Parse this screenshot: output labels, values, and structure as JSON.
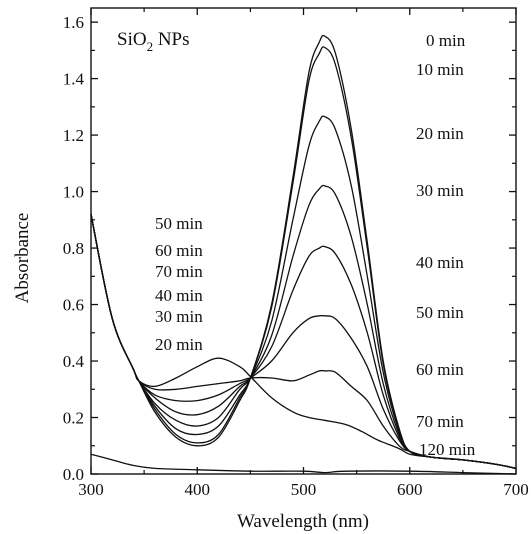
{
  "chart_data": {
    "type": "line",
    "title_main": "SiO",
    "title_sub": "2",
    "title_rest": " NPs",
    "xlabel": "Wavelength (nm)",
    "ylabel": "Absorbance",
    "xlim": [
      300,
      700
    ],
    "ylim": [
      0.0,
      1.65
    ],
    "xticks": [
      300,
      400,
      500,
      600,
      700
    ],
    "yticks": [
      0.0,
      0.2,
      0.4,
      0.6,
      0.8,
      1.0,
      1.2,
      1.4,
      1.6
    ],
    "xtick_labels": [
      "300",
      "400",
      "500",
      "600",
      "700"
    ],
    "ytick_labels": [
      "0.0",
      "0.2",
      "0.4",
      "0.6",
      "0.8",
      "1.0",
      "1.2",
      "1.4",
      "1.6"
    ],
    "grid": false,
    "right_labels": [
      "0 min",
      "10 min",
      "20 min",
      "30 min",
      "40 min",
      "50 min",
      "60 min",
      "70 min",
      "120 min"
    ],
    "left_labels": [
      "50 min",
      "60 min",
      "70 min",
      "40 min",
      "30 min",
      "20 min"
    ],
    "series": [
      {
        "values": [
          [
            300,
            0.92
          ],
          [
            320,
            0.55
          ],
          [
            340,
            0.37
          ],
          [
            345,
            0.33
          ],
          [
            360,
            0.22
          ],
          [
            380,
            0.13
          ],
          [
            400,
            0.1
          ],
          [
            420,
            0.13
          ],
          [
            440,
            0.26
          ],
          [
            450,
            0.34
          ],
          [
            470,
            0.6
          ],
          [
            490,
            1.05
          ],
          [
            505,
            1.42
          ],
          [
            515,
            1.53
          ],
          [
            520,
            1.55
          ],
          [
            530,
            1.49
          ],
          [
            545,
            1.22
          ],
          [
            560,
            0.82
          ],
          [
            575,
            0.4
          ],
          [
            590,
            0.16
          ],
          [
            600,
            0.08
          ],
          [
            620,
            0.06
          ],
          [
            650,
            0.05
          ],
          [
            680,
            0.035
          ],
          [
            700,
            0.02
          ]
        ]
      },
      {
        "values": [
          [
            300,
            0.92
          ],
          [
            320,
            0.55
          ],
          [
            340,
            0.37
          ],
          [
            345,
            0.33
          ],
          [
            360,
            0.23
          ],
          [
            380,
            0.14
          ],
          [
            400,
            0.11
          ],
          [
            420,
            0.14
          ],
          [
            440,
            0.27
          ],
          [
            450,
            0.34
          ],
          [
            470,
            0.59
          ],
          [
            490,
            1.03
          ],
          [
            505,
            1.39
          ],
          [
            515,
            1.49
          ],
          [
            520,
            1.51
          ],
          [
            530,
            1.45
          ],
          [
            545,
            1.19
          ],
          [
            560,
            0.8
          ],
          [
            575,
            0.39
          ],
          [
            590,
            0.16
          ],
          [
            600,
            0.08
          ],
          [
            620,
            0.06
          ],
          [
            650,
            0.05
          ],
          [
            680,
            0.035
          ],
          [
            700,
            0.02
          ]
        ]
      },
      {
        "values": [
          [
            300,
            0.92
          ],
          [
            320,
            0.55
          ],
          [
            340,
            0.37
          ],
          [
            345,
            0.33
          ],
          [
            360,
            0.24
          ],
          [
            380,
            0.16
          ],
          [
            400,
            0.14
          ],
          [
            420,
            0.17
          ],
          [
            440,
            0.28
          ],
          [
            450,
            0.34
          ],
          [
            470,
            0.54
          ],
          [
            490,
            0.9
          ],
          [
            505,
            1.16
          ],
          [
            515,
            1.25
          ],
          [
            520,
            1.265
          ],
          [
            530,
            1.22
          ],
          [
            545,
            1.02
          ],
          [
            560,
            0.7
          ],
          [
            575,
            0.36
          ],
          [
            590,
            0.15
          ],
          [
            600,
            0.08
          ],
          [
            620,
            0.06
          ],
          [
            650,
            0.05
          ],
          [
            680,
            0.035
          ],
          [
            700,
            0.02
          ]
        ]
      },
      {
        "values": [
          [
            300,
            0.92
          ],
          [
            320,
            0.55
          ],
          [
            340,
            0.37
          ],
          [
            345,
            0.33
          ],
          [
            360,
            0.25
          ],
          [
            380,
            0.19
          ],
          [
            400,
            0.17
          ],
          [
            420,
            0.2
          ],
          [
            440,
            0.3
          ],
          [
            450,
            0.34
          ],
          [
            470,
            0.49
          ],
          [
            490,
            0.77
          ],
          [
            505,
            0.95
          ],
          [
            515,
            1.01
          ],
          [
            520,
            1.02
          ],
          [
            530,
            0.99
          ],
          [
            545,
            0.84
          ],
          [
            560,
            0.6
          ],
          [
            575,
            0.32
          ],
          [
            590,
            0.14
          ],
          [
            600,
            0.08
          ],
          [
            620,
            0.06
          ],
          [
            650,
            0.05
          ],
          [
            680,
            0.035
          ],
          [
            700,
            0.02
          ]
        ]
      },
      {
        "values": [
          [
            300,
            0.92
          ],
          [
            320,
            0.55
          ],
          [
            340,
            0.37
          ],
          [
            345,
            0.33
          ],
          [
            360,
            0.27
          ],
          [
            380,
            0.22
          ],
          [
            400,
            0.21
          ],
          [
            420,
            0.24
          ],
          [
            440,
            0.31
          ],
          [
            450,
            0.34
          ],
          [
            470,
            0.45
          ],
          [
            490,
            0.65
          ],
          [
            505,
            0.77
          ],
          [
            515,
            0.8
          ],
          [
            520,
            0.805
          ],
          [
            530,
            0.78
          ],
          [
            545,
            0.67
          ],
          [
            560,
            0.5
          ],
          [
            575,
            0.28
          ],
          [
            590,
            0.13
          ],
          [
            600,
            0.08
          ],
          [
            620,
            0.06
          ],
          [
            650,
            0.05
          ],
          [
            680,
            0.035
          ],
          [
            700,
            0.02
          ]
        ]
      },
      {
        "values": [
          [
            300,
            0.92
          ],
          [
            320,
            0.55
          ],
          [
            340,
            0.37
          ],
          [
            345,
            0.33
          ],
          [
            360,
            0.28
          ],
          [
            380,
            0.26
          ],
          [
            400,
            0.26
          ],
          [
            420,
            0.28
          ],
          [
            440,
            0.32
          ],
          [
            450,
            0.34
          ],
          [
            470,
            0.4
          ],
          [
            490,
            0.5
          ],
          [
            505,
            0.55
          ],
          [
            515,
            0.56
          ],
          [
            520,
            0.56
          ],
          [
            530,
            0.55
          ],
          [
            545,
            0.48
          ],
          [
            560,
            0.38
          ],
          [
            575,
            0.23
          ],
          [
            590,
            0.12
          ],
          [
            600,
            0.08
          ],
          [
            620,
            0.06
          ],
          [
            650,
            0.05
          ],
          [
            680,
            0.035
          ],
          [
            700,
            0.02
          ]
        ]
      },
      {
        "values": [
          [
            300,
            0.92
          ],
          [
            320,
            0.55
          ],
          [
            340,
            0.37
          ],
          [
            345,
            0.33
          ],
          [
            360,
            0.3
          ],
          [
            380,
            0.3
          ],
          [
            400,
            0.31
          ],
          [
            420,
            0.32
          ],
          [
            440,
            0.33
          ],
          [
            450,
            0.34
          ],
          [
            470,
            0.34
          ],
          [
            490,
            0.33
          ],
          [
            505,
            0.35
          ],
          [
            515,
            0.365
          ],
          [
            520,
            0.365
          ],
          [
            530,
            0.36
          ],
          [
            545,
            0.31
          ],
          [
            560,
            0.26
          ],
          [
            575,
            0.17
          ],
          [
            590,
            0.1
          ],
          [
            600,
            0.08
          ],
          [
            620,
            0.06
          ],
          [
            650,
            0.05
          ],
          [
            680,
            0.035
          ],
          [
            700,
            0.02
          ]
        ]
      },
      {
        "values": [
          [
            300,
            0.92
          ],
          [
            320,
            0.55
          ],
          [
            340,
            0.37
          ],
          [
            345,
            0.33
          ],
          [
            360,
            0.31
          ],
          [
            380,
            0.34
          ],
          [
            400,
            0.38
          ],
          [
            420,
            0.41
          ],
          [
            440,
            0.38
          ],
          [
            450,
            0.345
          ],
          [
            470,
            0.27
          ],
          [
            490,
            0.22
          ],
          [
            505,
            0.2
          ],
          [
            520,
            0.19
          ],
          [
            540,
            0.175
          ],
          [
            555,
            0.15
          ],
          [
            570,
            0.12
          ],
          [
            590,
            0.09
          ],
          [
            600,
            0.07
          ],
          [
            620,
            0.06
          ],
          [
            650,
            0.05
          ],
          [
            680,
            0.035
          ],
          [
            700,
            0.02
          ]
        ]
      },
      {
        "values": [
          [
            300,
            0.07
          ],
          [
            320,
            0.05
          ],
          [
            340,
            0.03
          ],
          [
            360,
            0.02
          ],
          [
            400,
            0.015
          ],
          [
            450,
            0.01
          ],
          [
            500,
            0.01
          ],
          [
            520,
            0.005
          ],
          [
            540,
            0.01
          ],
          [
            600,
            0.01
          ],
          [
            650,
            0.005
          ],
          [
            700,
            0.0
          ]
        ]
      }
    ]
  }
}
